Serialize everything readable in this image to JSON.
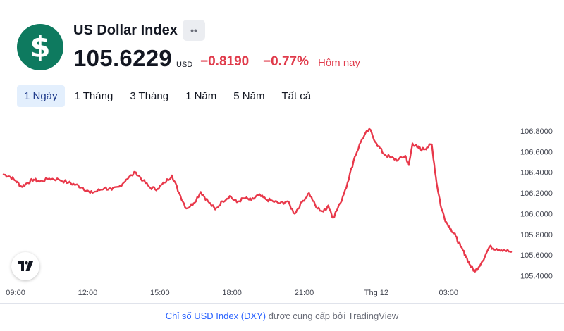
{
  "header": {
    "logo_symbol": "$",
    "name": "US Dollar Index",
    "badge": "••",
    "price": "105.6229",
    "currency": "USD",
    "change": "−0.8190",
    "change_pct": "−0.77%",
    "period_label": "Hôm nay"
  },
  "tabs": [
    {
      "label": "1 Ngày",
      "active": true
    },
    {
      "label": "1 Tháng",
      "active": false
    },
    {
      "label": "3 Tháng",
      "active": false
    },
    {
      "label": "1 Năm",
      "active": false
    },
    {
      "label": "5 Năm",
      "active": false
    },
    {
      "label": "Tất cả",
      "active": false
    }
  ],
  "footer": {
    "link_text": "Chỉ số USD Index (DXY)",
    "rest_text": " được cung cấp bởi TradingView"
  },
  "colors": {
    "line": "#e8384a",
    "accent": "#2962ff",
    "down": "#e03b4b",
    "logo_bg": "#0e7a5f"
  },
  "icons": {
    "logo": "dollar-icon",
    "tradingview": "tradingview-logo-icon"
  },
  "chart_data": {
    "type": "line",
    "x_type": "time",
    "x_ticks": [
      "09:00",
      "12:00",
      "15:00",
      "18:00",
      "21:00",
      "Thg 12",
      "03:00"
    ],
    "x_tick_hours": [
      9,
      12,
      15,
      18,
      21,
      24,
      27
    ],
    "x_range_hours": [
      8.5,
      29.6
    ],
    "y_ticks": [
      "106.8000",
      "106.6000",
      "106.4000",
      "106.2000",
      "106.0000",
      "105.8000",
      "105.6000",
      "105.4000"
    ],
    "y_tick_values": [
      106.8,
      106.6,
      106.4,
      106.2,
      106.0,
      105.8,
      105.6,
      105.4
    ],
    "ylim": [
      105.39,
      106.84
    ],
    "grid": false,
    "series": [
      {
        "x": [
          8.5,
          8.75,
          9.0,
          9.25,
          9.5,
          9.75,
          10.0,
          10.4,
          10.8,
          11.2,
          11.5,
          11.8,
          12.1,
          12.4,
          12.7,
          13.0,
          13.3,
          13.6,
          14.0,
          14.3,
          14.6,
          14.9,
          15.2,
          15.5,
          15.8,
          16.1,
          16.4,
          16.7,
          17.0,
          17.3,
          17.6,
          17.9,
          18.2,
          18.5,
          18.8,
          19.1,
          19.4,
          19.7,
          20.0,
          20.3,
          20.6,
          20.9,
          21.2,
          21.5,
          21.8,
          22.0,
          22.2,
          22.5,
          22.8,
          23.1,
          23.4,
          23.7,
          24.0,
          24.3,
          24.6,
          24.9,
          25.2,
          25.35,
          25.5,
          25.7,
          25.9,
          26.1,
          26.3,
          26.5,
          26.7,
          26.9,
          27.1,
          27.3,
          27.5,
          27.7,
          27.9,
          28.1,
          28.4,
          28.7,
          29.0,
          29.3,
          29.6
        ],
        "y": [
          106.38,
          106.36,
          106.32,
          106.26,
          106.3,
          106.33,
          106.31,
          106.34,
          106.33,
          106.3,
          106.28,
          106.25,
          106.2,
          106.22,
          106.25,
          106.23,
          106.26,
          106.33,
          106.4,
          106.32,
          106.25,
          106.24,
          106.3,
          106.37,
          106.2,
          106.05,
          106.1,
          106.21,
          106.12,
          106.04,
          106.12,
          106.17,
          106.11,
          106.15,
          106.13,
          106.18,
          106.14,
          106.12,
          106.1,
          106.12,
          106.0,
          106.11,
          106.2,
          106.06,
          106.02,
          106.08,
          105.96,
          106.1,
          106.3,
          106.55,
          106.72,
          106.82,
          106.68,
          106.58,
          106.54,
          106.52,
          106.56,
          106.47,
          106.68,
          106.64,
          106.62,
          106.64,
          106.67,
          106.3,
          106.05,
          105.92,
          105.85,
          105.78,
          105.68,
          105.6,
          105.5,
          105.44,
          105.54,
          105.68,
          105.66,
          105.65,
          105.63
        ]
      }
    ]
  }
}
